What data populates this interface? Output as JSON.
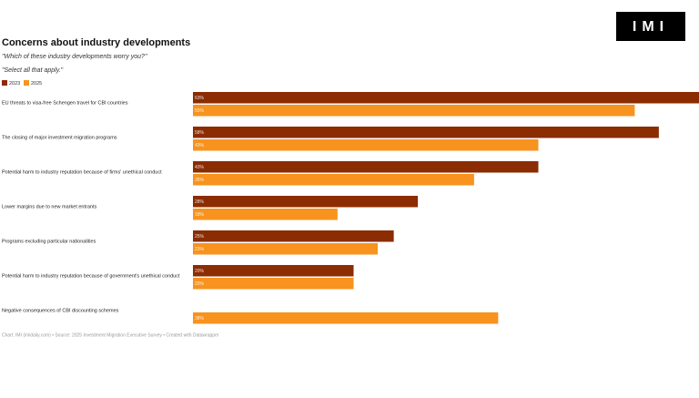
{
  "chart_data": {
    "type": "bar",
    "orientation": "horizontal",
    "title": "Concerns about industry developments",
    "subtitle": "\"Which of these industry developments worry you?\"",
    "note": "\"Select all that apply.\"",
    "logo": "IMI",
    "source": "Chart: IMI (imidaily.com) • Source: 2025 Investment Migration Executive Survey • Created with Datawrapper",
    "categories": [
      "EU threats to visa-free Schengen travel for CBI countries",
      "The closing of major investment migration programs",
      "Potential harm to industry reputation because of firms' unethical conduct",
      "Lower margins due to new market entrants",
      "Programs excluding particular nationalities",
      "Potential harm to industry reputation because of government's unethical conduct",
      "Negative consequences of CBI discounting schemes"
    ],
    "series": [
      {
        "name": "2023",
        "color": "#8b2c02",
        "values": [
          63,
          58,
          43,
          28,
          25,
          20,
          null
        ],
        "value_labels": [
          "63%",
          "58%",
          "43%",
          "28%",
          "25%",
          "20%",
          null
        ]
      },
      {
        "name": "2025",
        "color": "#f7931e",
        "values": [
          55,
          43,
          35,
          18,
          23,
          20,
          38
        ],
        "value_labels": [
          "55%",
          "43%",
          "35%",
          "18%",
          "23%",
          "20%",
          "38%"
        ]
      }
    ],
    "xlim": [
      0,
      63
    ]
  }
}
